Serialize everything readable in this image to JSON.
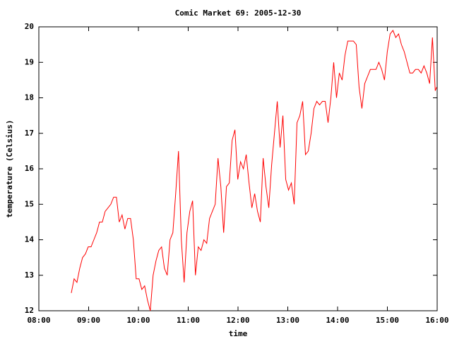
{
  "chart_data": {
    "type": "line",
    "title": "Comic Market 69: 2005-12-30",
    "x_label": "time",
    "y_label": "temperature (Celsius)",
    "color": "#ff0000",
    "grid": false,
    "xlim": [
      480,
      960
    ],
    "xticks": [
      {
        "value": 480,
        "label": "08:00"
      },
      {
        "value": 540,
        "label": "09:00"
      },
      {
        "value": 600,
        "label": "10:00"
      },
      {
        "value": 660,
        "label": "11:00"
      },
      {
        "value": 720,
        "label": "12:00"
      },
      {
        "value": 780,
        "label": "13:00"
      },
      {
        "value": 840,
        "label": "14:00"
      },
      {
        "value": 900,
        "label": "15:00"
      },
      {
        "value": 960,
        "label": "16:00"
      }
    ],
    "ylim": [
      12,
      20
    ],
    "yticks": [
      12,
      13,
      14,
      15,
      16,
      17,
      18,
      19,
      20
    ],
    "x": [
      519.1,
      522.5,
      525.9,
      529.3,
      532.7,
      536.1,
      539.5,
      542.9,
      546.3,
      549.7,
      553.1,
      556.5,
      559.9,
      563.3,
      566.7,
      570.1,
      573.5,
      576.9,
      580.3,
      583.7,
      587.1,
      590.5,
      593.9,
      597.3,
      600.7,
      604.1,
      607.5,
      610.9,
      614.3,
      617.7,
      621.1,
      624.5,
      627.9,
      631.3,
      634.7,
      638.1,
      641.5,
      644.9,
      648.3,
      651.7,
      655.1,
      658.5,
      661.9,
      665.3,
      668.7,
      672.1,
      675.5,
      678.9,
      682.3,
      685.7,
      689.1,
      692.5,
      695.9,
      699.3,
      702.7,
      706.1,
      709.5,
      712.9,
      716.3,
      719.7,
      723.1,
      726.5,
      729.9,
      733.3,
      736.7,
      740.1,
      743.5,
      746.9,
      750.3,
      753.7,
      757.1,
      760.5,
      763.9,
      767.3,
      770.7,
      774.1,
      777.5,
      780.9,
      784.3,
      787.7,
      791.1,
      794.5,
      797.9,
      801.3,
      804.7,
      808.1,
      811.5,
      814.9,
      818.3,
      821.7,
      825.1,
      828.5,
      831.9,
      835.3,
      838.7,
      842.1,
      845.5,
      848.9,
      852.3,
      855.7,
      859.1,
      862.5,
      865.9,
      869.3,
      872.7,
      876.1,
      879.5,
      882.9,
      886.3,
      889.7,
      893.1,
      896.5,
      899.9,
      903.3,
      906.7,
      910.1,
      913.5,
      916.9,
      920.3,
      923.7,
      927.1,
      930.5,
      933.9,
      937.3,
      940.7,
      944.1,
      947.5,
      950.9,
      954.3,
      957.7,
      959.4
    ],
    "values": [
      12.5,
      12.9,
      12.8,
      13.2,
      13.5,
      13.6,
      13.8,
      13.8,
      14.0,
      14.2,
      14.5,
      14.5,
      14.8,
      14.9,
      15.0,
      15.2,
      15.2,
      14.5,
      14.7,
      14.3,
      14.6,
      14.6,
      14.0,
      12.9,
      12.9,
      12.6,
      12.7,
      12.3,
      12.0,
      13.0,
      13.4,
      13.7,
      13.8,
      13.2,
      13.0,
      14.0,
      14.2,
      15.3,
      16.5,
      14.0,
      12.8,
      14.2,
      14.8,
      15.1,
      13.0,
      13.8,
      13.7,
      14.0,
      13.9,
      14.6,
      14.8,
      15.0,
      16.3,
      15.5,
      14.2,
      15.5,
      15.6,
      16.8,
      17.1,
      15.7,
      16.2,
      16.0,
      16.4,
      15.6,
      14.9,
      15.3,
      14.8,
      14.5,
      16.3,
      15.5,
      14.9,
      16.1,
      17.0,
      17.9,
      16.6,
      17.5,
      15.7,
      15.4,
      15.6,
      15.0,
      17.3,
      17.5,
      17.9,
      16.4,
      16.5,
      17.0,
      17.7,
      17.9,
      17.8,
      17.9,
      17.9,
      17.3,
      18.0,
      19.0,
      18.0,
      18.7,
      18.5,
      19.2,
      19.6,
      19.6,
      19.6,
      19.5,
      18.3,
      17.7,
      18.4,
      18.6,
      18.8,
      18.8,
      18.8,
      19.0,
      18.8,
      18.5,
      19.3,
      19.8,
      19.9,
      19.7,
      19.8,
      19.5,
      19.3,
      19.0,
      18.7,
      18.7,
      18.8,
      18.8,
      18.7,
      18.9,
      18.7,
      18.4,
      19.7,
      18.2,
      18.3
    ]
  }
}
